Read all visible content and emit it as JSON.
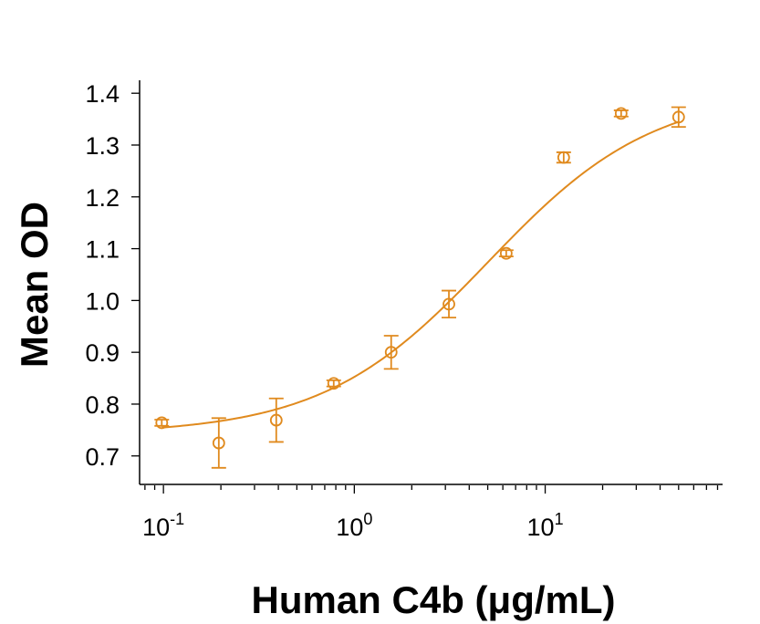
{
  "chart_data": {
    "type": "scatter",
    "xlabel": "Human C4b (μg/mL)",
    "ylabel": "Mean OD",
    "x_scale": "log",
    "xlim": [
      0.075,
      85
    ],
    "ylim": [
      0.645,
      1.425
    ],
    "x_ticks": [
      {
        "value": 0.1,
        "base": "10",
        "exp": "-1"
      },
      {
        "value": 1,
        "base": "10",
        "exp": "0"
      },
      {
        "value": 10,
        "base": "10",
        "exp": "1"
      }
    ],
    "y_ticks": [
      "0.7",
      "0.8",
      "0.9",
      "1.0",
      "1.1",
      "1.2",
      "1.3",
      "1.4"
    ],
    "grid": false,
    "color": "#E08A1E",
    "series": [
      {
        "points": [
          {
            "x": 0.098,
            "y": 0.764,
            "err": 0.006
          },
          {
            "x": 0.195,
            "y": 0.725,
            "err": 0.048
          },
          {
            "x": 0.39,
            "y": 0.769,
            "err": 0.042
          },
          {
            "x": 0.78,
            "y": 0.84,
            "err": 0.006
          },
          {
            "x": 1.56,
            "y": 0.9,
            "err": 0.032
          },
          {
            "x": 3.13,
            "y": 0.993,
            "err": 0.026
          },
          {
            "x": 6.25,
            "y": 1.091,
            "err": 0.006
          },
          {
            "x": 12.5,
            "y": 1.276,
            "err": 0.01
          },
          {
            "x": 25,
            "y": 1.361,
            "err": 0.006
          },
          {
            "x": 50,
            "y": 1.354,
            "err": 0.019
          }
        ]
      }
    ],
    "fit": {
      "model": "4PL",
      "bottom": 0.742,
      "top": 1.405,
      "ec50": 5.0,
      "hill": 1.0,
      "x_range": [
        0.098,
        50
      ]
    }
  }
}
